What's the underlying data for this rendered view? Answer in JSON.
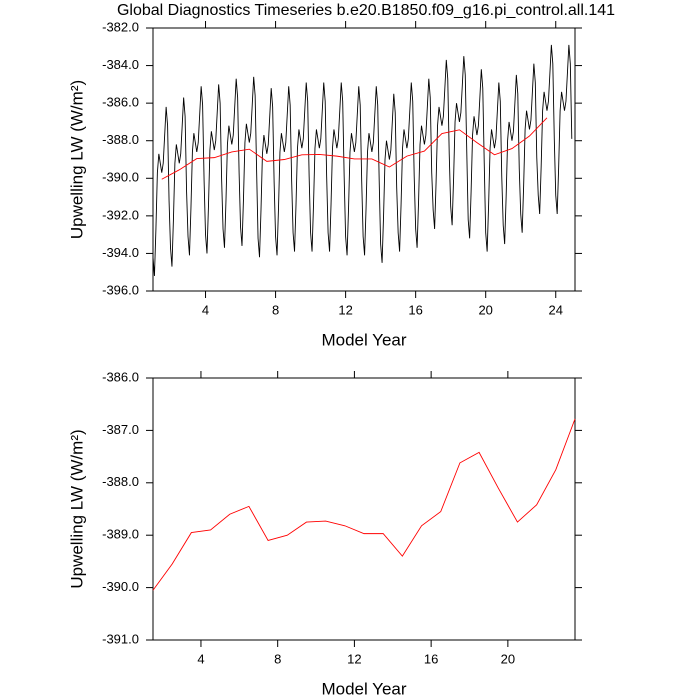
{
  "chart_data": [
    {
      "type": "line",
      "title": "Global Diagnostics Timeseries b.e20.B1850.f09_g16.pi_control.all.141",
      "xlabel": "Model Year",
      "ylabel": "Upwelling LW (W/m²)",
      "xlim": [
        1,
        25.1
      ],
      "ylim": [
        -396,
        -382
      ],
      "xticks": [
        4,
        8,
        12,
        16,
        20,
        24
      ],
      "yticks": [
        {
          "value": -396,
          "label": "-396.0"
        },
        {
          "value": -394,
          "label": "-394.0"
        },
        {
          "value": -392,
          "label": "-392.0"
        },
        {
          "value": -390,
          "label": "-390.0"
        },
        {
          "value": -388,
          "label": "-388.0"
        },
        {
          "value": -386,
          "label": "-386.0"
        },
        {
          "value": -384,
          "label": "-384.0"
        },
        {
          "value": -382,
          "label": "-382.0"
        }
      ],
      "series": [
        {
          "color": "#000000",
          "x": [
            1,
            1.083,
            1.167,
            1.25,
            1.333,
            1.417,
            1.5,
            1.583,
            1.667,
            1.75,
            1.833,
            1.917,
            2,
            2.083,
            2.167,
            2.25,
            2.333,
            2.417,
            2.5,
            2.583,
            2.667,
            2.75,
            2.833,
            2.917,
            3,
            3.083,
            3.167,
            3.25,
            3.333,
            3.417,
            3.5,
            3.583,
            3.667,
            3.75,
            3.833,
            3.917,
            4,
            4.083,
            4.167,
            4.25,
            4.333,
            4.417,
            4.5,
            4.583,
            4.667,
            4.75,
            4.833,
            4.917,
            5,
            5.083,
            5.167,
            5.25,
            5.333,
            5.417,
            5.5,
            5.583,
            5.667,
            5.75,
            5.833,
            5.917,
            6,
            6.083,
            6.167,
            6.25,
            6.333,
            6.417,
            6.5,
            6.583,
            6.667,
            6.75,
            6.833,
            6.917,
            7,
            7.083,
            7.167,
            7.25,
            7.333,
            7.417,
            7.5,
            7.583,
            7.667,
            7.75,
            7.833,
            7.917,
            8,
            8.083,
            8.167,
            8.25,
            8.333,
            8.417,
            8.5,
            8.583,
            8.667,
            8.75,
            8.833,
            8.917,
            9,
            9.083,
            9.167,
            9.25,
            9.333,
            9.417,
            9.5,
            9.583,
            9.667,
            9.75,
            9.833,
            9.917,
            10,
            10.083,
            10.167,
            10.25,
            10.333,
            10.417,
            10.5,
            10.583,
            10.667,
            10.75,
            10.833,
            10.917,
            11,
            11.083,
            11.167,
            11.25,
            11.333,
            11.417,
            11.5,
            11.583,
            11.667,
            11.75,
            11.833,
            11.917,
            12,
            12.083,
            12.167,
            12.25,
            12.333,
            12.417,
            12.5,
            12.583,
            12.667,
            12.75,
            12.833,
            12.917,
            13,
            13.083,
            13.167,
            13.25,
            13.333,
            13.417,
            13.5,
            13.583,
            13.667,
            13.75,
            13.833,
            13.917,
            14,
            14.083,
            14.167,
            14.25,
            14.333,
            14.417,
            14.5,
            14.583,
            14.667,
            14.75,
            14.833,
            14.917,
            15,
            15.083,
            15.167,
            15.25,
            15.333,
            15.417,
            15.5,
            15.583,
            15.667,
            15.75,
            15.833,
            15.917,
            16,
            16.083,
            16.167,
            16.25,
            16.333,
            16.417,
            16.5,
            16.583,
            16.667,
            16.75,
            16.833,
            16.917,
            17,
            17.083,
            17.167,
            17.25,
            17.333,
            17.417,
            17.5,
            17.583,
            17.667,
            17.75,
            17.833,
            17.917,
            18,
            18.083,
            18.167,
            18.25,
            18.333,
            18.417,
            18.5,
            18.583,
            18.667,
            18.75,
            18.833,
            18.917,
            19,
            19.083,
            19.167,
            19.25,
            19.333,
            19.417,
            19.5,
            19.583,
            19.667,
            19.75,
            19.833,
            19.917,
            20,
            20.083,
            20.167,
            20.25,
            20.333,
            20.417,
            20.5,
            20.583,
            20.667,
            20.75,
            20.833,
            20.917,
            21,
            21.083,
            21.167,
            21.25,
            21.333,
            21.417,
            21.5,
            21.583,
            21.667,
            21.75,
            21.833,
            21.917,
            22,
            22.083,
            22.167,
            22.25,
            22.333,
            22.417,
            22.5,
            22.583,
            22.667,
            22.75,
            22.833,
            22.917,
            23,
            23.083,
            23.167,
            23.25,
            23.333,
            23.417,
            23.5,
            23.583,
            23.667,
            23.75,
            23.833,
            23.917,
            24,
            24.083,
            24.167,
            24.25,
            24.333,
            24.417,
            24.5,
            24.583,
            24.667,
            24.75,
            24.833,
            24.917
          ],
          "values": [
            -394.2,
            -395.2,
            -392.7,
            -389.7,
            -388.7,
            -389.2,
            -389.7,
            -389.2,
            -387.7,
            -386.2,
            -387.2,
            -391.2,
            -393.7,
            -394.7,
            -392.2,
            -389.2,
            -388.2,
            -388.7,
            -389.2,
            -388.7,
            -387.2,
            -385.7,
            -386.7,
            -390.7,
            -393.1,
            -394.1,
            -391.6,
            -388.6,
            -387.6,
            -388.1,
            -388.6,
            -388.1,
            -386.6,
            -385.1,
            -386.1,
            -390.1,
            -393,
            -394,
            -391.5,
            -388.5,
            -387.5,
            -388,
            -388.5,
            -388,
            -386.5,
            -385,
            -386,
            -390,
            -392.7,
            -393.7,
            -391.2,
            -388.2,
            -387.2,
            -387.7,
            -388.2,
            -387.7,
            -386.2,
            -384.7,
            -385.7,
            -389.7,
            -392.6,
            -393.6,
            -391.1,
            -388.1,
            -387.1,
            -387.6,
            -388.1,
            -387.6,
            -386.1,
            -384.6,
            -385.6,
            -389.6,
            -393.2,
            -394.2,
            -391.7,
            -388.7,
            -387.7,
            -388.2,
            -388.7,
            -388.2,
            -386.7,
            -385.2,
            -386.2,
            -390.2,
            -393.1,
            -394.1,
            -391.6,
            -388.6,
            -387.6,
            -388.1,
            -388.6,
            -388.1,
            -386.6,
            -385.1,
            -386.1,
            -390.1,
            -392.9,
            -393.9,
            -391.4,
            -388.4,
            -387.4,
            -387.9,
            -388.4,
            -387.9,
            -386.4,
            -384.9,
            -385.9,
            -389.9,
            -392.9,
            -393.9,
            -391.4,
            -388.4,
            -387.4,
            -387.9,
            -388.4,
            -387.9,
            -386.4,
            -384.9,
            -385.9,
            -389.9,
            -392.9,
            -393.9,
            -391.4,
            -388.4,
            -387.4,
            -387.9,
            -388.4,
            -387.9,
            -386.4,
            -384.9,
            -385.9,
            -389.9,
            -393.1,
            -394.1,
            -391.6,
            -388.6,
            -387.6,
            -388.1,
            -388.6,
            -388.1,
            -386.6,
            -385.1,
            -386.1,
            -390.1,
            -393.1,
            -394.1,
            -391.6,
            -388.6,
            -387.6,
            -388.1,
            -388.6,
            -388.1,
            -386.6,
            -385.1,
            -386.1,
            -390.1,
            -393.5,
            -394.5,
            -392,
            -389,
            -388,
            -388.5,
            -389,
            -388.5,
            -387,
            -385.5,
            -386.5,
            -390.5,
            -392.9,
            -393.9,
            -391.4,
            -388.4,
            -387.4,
            -387.9,
            -388.4,
            -387.9,
            -386.4,
            -384.9,
            -385.9,
            -389.9,
            -392.7,
            -393.7,
            -391.2,
            -388.2,
            -387.2,
            -387.7,
            -388.2,
            -387.7,
            -386.2,
            -384.7,
            -385.7,
            -389.7,
            -391.7,
            -392.7,
            -390.2,
            -387.2,
            -386.2,
            -386.7,
            -387.2,
            -386.7,
            -385.2,
            -383.7,
            -384.7,
            -388.7,
            -391.5,
            -392.5,
            -390,
            -387,
            -386,
            -386.5,
            -387,
            -386.5,
            -385,
            -383.5,
            -384.5,
            -388.5,
            -392.2,
            -393.2,
            -390.7,
            -387.7,
            -386.7,
            -387.2,
            -387.7,
            -387.2,
            -385.7,
            -384.2,
            -385.2,
            -389.2,
            -392.9,
            -393.9,
            -391.4,
            -388.4,
            -387.4,
            -387.9,
            -388.4,
            -387.9,
            -386.4,
            -384.9,
            -385.9,
            -389.9,
            -392.5,
            -393.5,
            -391,
            -388,
            -387,
            -387.5,
            -388,
            -387.5,
            -386,
            -384.5,
            -385.5,
            -389.5,
            -391.9,
            -392.9,
            -390.4,
            -387.4,
            -386.4,
            -386.9,
            -387.4,
            -386.9,
            -385.4,
            -383.9,
            -384.9,
            -388.9,
            -390.9,
            -391.9,
            -389.4,
            -386.4,
            -385.4,
            -385.9,
            -386.4,
            -385.9,
            -384.4,
            -382.9,
            -383.9,
            -387.9,
            -390.9,
            -391.9,
            -389.4,
            -386.4,
            -385.4,
            -385.9,
            -386.4,
            -385.9,
            -384.4,
            -382.9,
            -383.9,
            -387.9
          ]
        },
        {
          "color": "#ff0000",
          "x": [
            1.5,
            2.5,
            3.5,
            4.5,
            5.5,
            6.5,
            7.5,
            8.5,
            9.5,
            10.5,
            11.5,
            12.5,
            13.5,
            14.5,
            15.5,
            16.5,
            17.5,
            18.5,
            19.5,
            20.5,
            21.5,
            22.5,
            23.5
          ],
          "values": [
            -390.05,
            -389.55,
            -388.95,
            -388.9,
            -388.6,
            -388.45,
            -389.1,
            -389.0,
            -388.75,
            -388.73,
            -388.82,
            -388.97,
            -388.97,
            -389.4,
            -388.82,
            -388.55,
            -387.62,
            -387.42,
            -388.1,
            -388.75,
            -388.42,
            -387.75,
            -386.78
          ]
        }
      ]
    },
    {
      "type": "line",
      "xlabel": "Model Year",
      "ylabel": "Upwelling LW (W/m²)",
      "xlim": [
        1.5,
        23.5
      ],
      "ylim": [
        -391,
        -386
      ],
      "xticks": [
        4,
        8,
        12,
        16,
        20
      ],
      "yticks": [
        {
          "value": -391,
          "label": "-391.0"
        },
        {
          "value": -390,
          "label": "-390.0"
        },
        {
          "value": -389,
          "label": "-389.0"
        },
        {
          "value": -388,
          "label": "-388.0"
        },
        {
          "value": -387,
          "label": "-387.0"
        },
        {
          "value": -386,
          "label": "-386.0"
        }
      ],
      "series": [
        {
          "color": "#ff0000",
          "x": [
            1.5,
            2.5,
            3.5,
            4.5,
            5.5,
            6.5,
            7.5,
            8.5,
            9.5,
            10.5,
            11.5,
            12.5,
            13.5,
            14.5,
            15.5,
            16.5,
            17.5,
            18.5,
            19.5,
            20.5,
            21.5,
            22.5,
            23.5
          ],
          "values": [
            -390.05,
            -389.55,
            -388.95,
            -388.9,
            -388.6,
            -388.45,
            -389.1,
            -389.0,
            -388.75,
            -388.73,
            -388.82,
            -388.97,
            -388.97,
            -389.4,
            -388.82,
            -388.55,
            -387.62,
            -387.42,
            -388.1,
            -388.75,
            -388.42,
            -387.75,
            -386.78
          ]
        }
      ]
    }
  ]
}
